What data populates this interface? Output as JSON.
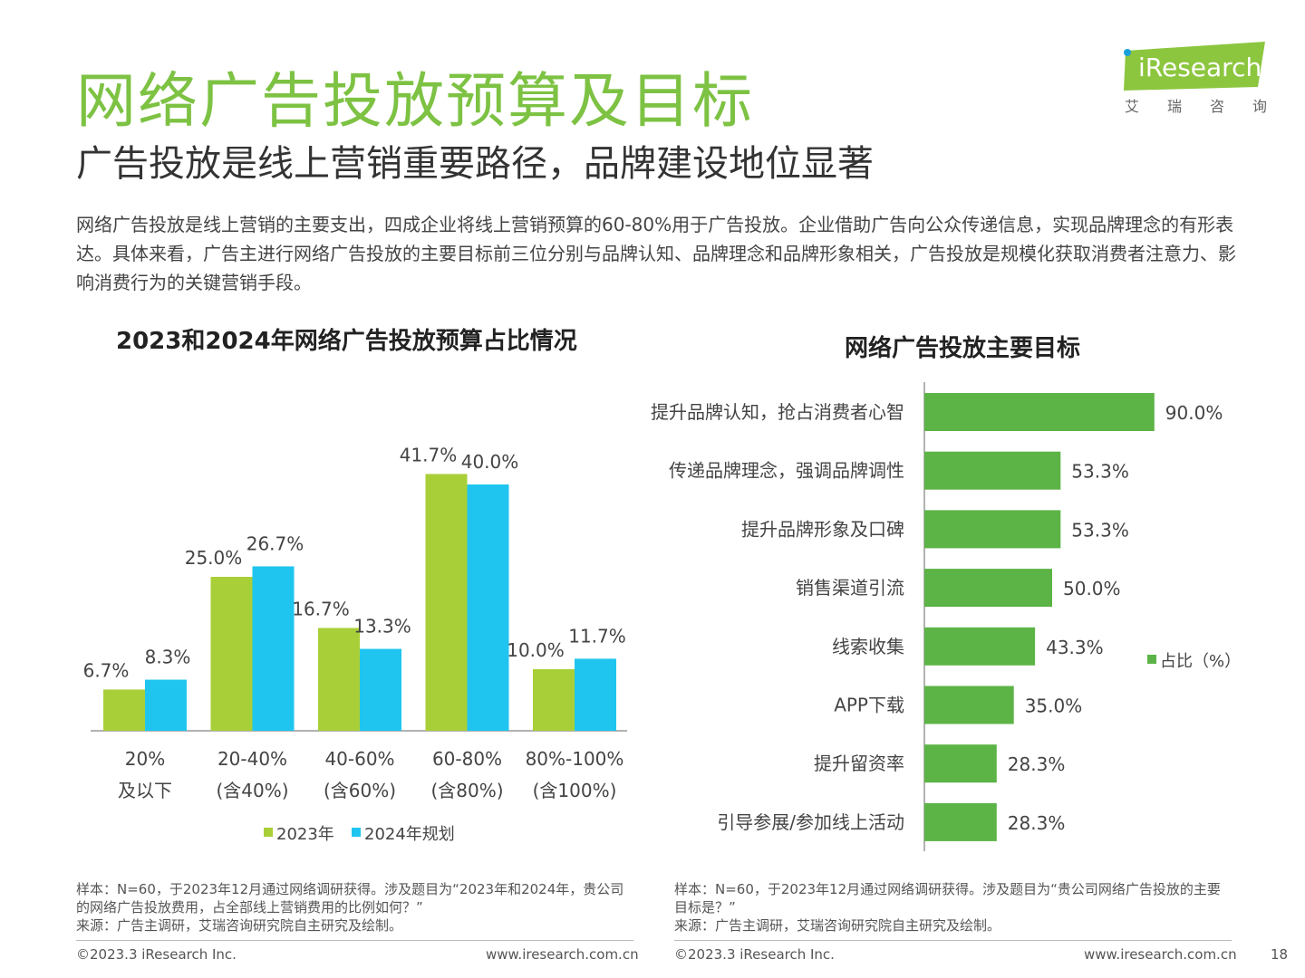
{
  "header": {
    "title": "网络广告投放预算及目标",
    "subtitle": "广告投放是线上营销重要路径，品牌建设地位显著",
    "intro": "网络广告投放是线上营销的主要支出，四成企业将线上营销预算的60-80%用于广告投放。企业借助广告向公众传递信息，实现品牌理念的有形表达。具体来看，广告主进行网络广告投放的主要目标前三位分别与品牌认知、品牌理念和品牌形象相关，广告投放是规模化获取消费者注意力、影响消费行为的关键营销手段。"
  },
  "logo": {
    "brand": "iResearch",
    "chars": [
      "艾",
      "瑞",
      "咨",
      "询"
    ]
  },
  "colors": {
    "title_green": "#7dc243",
    "bar_green": "#a9cf38",
    "bar_cyan": "#1fc5ee",
    "bar_right": "#5cb346",
    "logo_green": "#8cc63f",
    "logo_dot": "#1a9fd9"
  },
  "chart_data": [
    {
      "type": "bar",
      "title": "2023和2024年网络广告投放预算占比情况",
      "categories": [
        [
          "20%",
          "及以下"
        ],
        [
          "20-40%",
          "(含40%)"
        ],
        [
          "40-60%",
          "(含60%)"
        ],
        [
          "60-80%",
          "(含80%)"
        ],
        [
          "80%-100%",
          "(含100%)"
        ]
      ],
      "series": [
        {
          "name": "2023年",
          "values": [
            6.7,
            25.0,
            16.7,
            41.7,
            10.0
          ],
          "labels": [
            "6.7%",
            "25.0%",
            "16.7%",
            "41.7%",
            "10.0%"
          ]
        },
        {
          "name": "2024年规划",
          "values": [
            8.3,
            26.7,
            13.3,
            40.0,
            11.7
          ],
          "labels": [
            "8.3%",
            "26.7%",
            "13.3%",
            "40.0%",
            "11.7%"
          ]
        }
      ],
      "ylim": [
        0,
        50
      ],
      "xlabel": "",
      "ylabel": "",
      "legend": "bottom",
      "grid": false
    },
    {
      "type": "bar",
      "orientation": "horizontal",
      "title": "网络广告投放主要目标",
      "categories": [
        "提升品牌认知，抢占消费者心智",
        "传递品牌理念，强调品牌调性",
        "提升品牌形象及口碑",
        "销售渠道引流",
        "线索收集",
        "APP下载",
        "提升留资率",
        "引导参展/参加线上活动"
      ],
      "series": [
        {
          "name": "占比（%）",
          "values": [
            90.0,
            53.3,
            53.3,
            50.0,
            43.3,
            35.0,
            28.3,
            28.3
          ],
          "labels": [
            "90.0%",
            "53.3%",
            "53.3%",
            "50.0%",
            "43.3%",
            "35.0%",
            "28.3%",
            "28.3%"
          ]
        }
      ],
      "xlim": [
        0,
        100
      ],
      "legend": "right",
      "grid": false
    }
  ],
  "notes": {
    "left": "样本：N=60，于2023年12月通过网络调研获得。涉及题目为“2023年和2024年，贵公司的网络广告投放费用，占全部线上营销费用的比例如何？”",
    "right": "样本：N=60，于2023年12月通过网络调研获得。涉及题目为“贵公司网络广告投放的主要目标是？”",
    "source": "来源：广告主调研，艾瑞咨询研究院自主研究及绘制。"
  },
  "footer": {
    "copyright": "©2023.3 iResearch Inc.",
    "website": "www.iresearch.com.cn",
    "page": "18"
  }
}
